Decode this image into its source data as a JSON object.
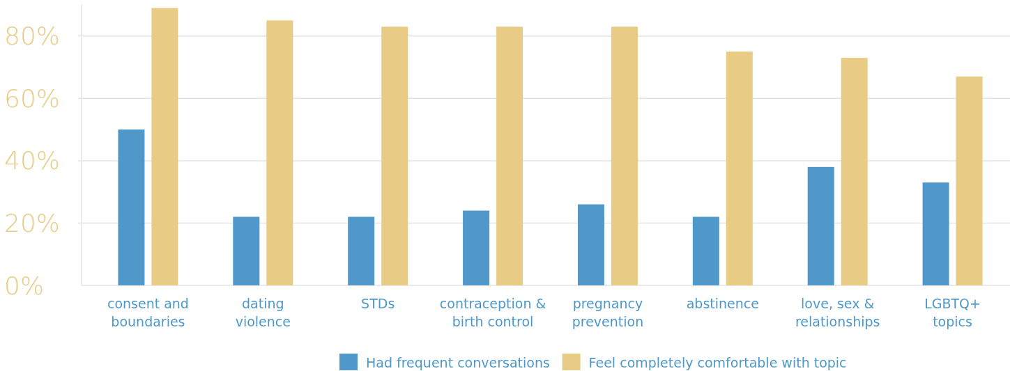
{
  "chart_data": {
    "type": "bar",
    "categories": [
      "consent and boundaries",
      "dating violence",
      "STDs",
      "contraception & birth control",
      "pregnancy prevention",
      "abstinence",
      "love, sex & relationships",
      "LGBTQ+ topics"
    ],
    "series": [
      {
        "name": "Had frequent conversations",
        "color": "#4f98c9",
        "values": [
          50,
          22,
          22,
          24,
          26,
          22,
          38,
          33
        ]
      },
      {
        "name": "Feel completely comfortable with topic",
        "color": "#e8cb85",
        "values": [
          89,
          85,
          83,
          83,
          83,
          75,
          73,
          67
        ]
      }
    ],
    "ylim": [
      0,
      90
    ],
    "yticks": [
      {
        "value": 0,
        "label": "0%"
      },
      {
        "value": 20,
        "label": "20%"
      },
      {
        "value": 40,
        "label": "40%"
      },
      {
        "value": 60,
        "label": "60%"
      },
      {
        "value": 80,
        "label": "80%"
      }
    ],
    "grid": "y",
    "legend": "bottom"
  }
}
